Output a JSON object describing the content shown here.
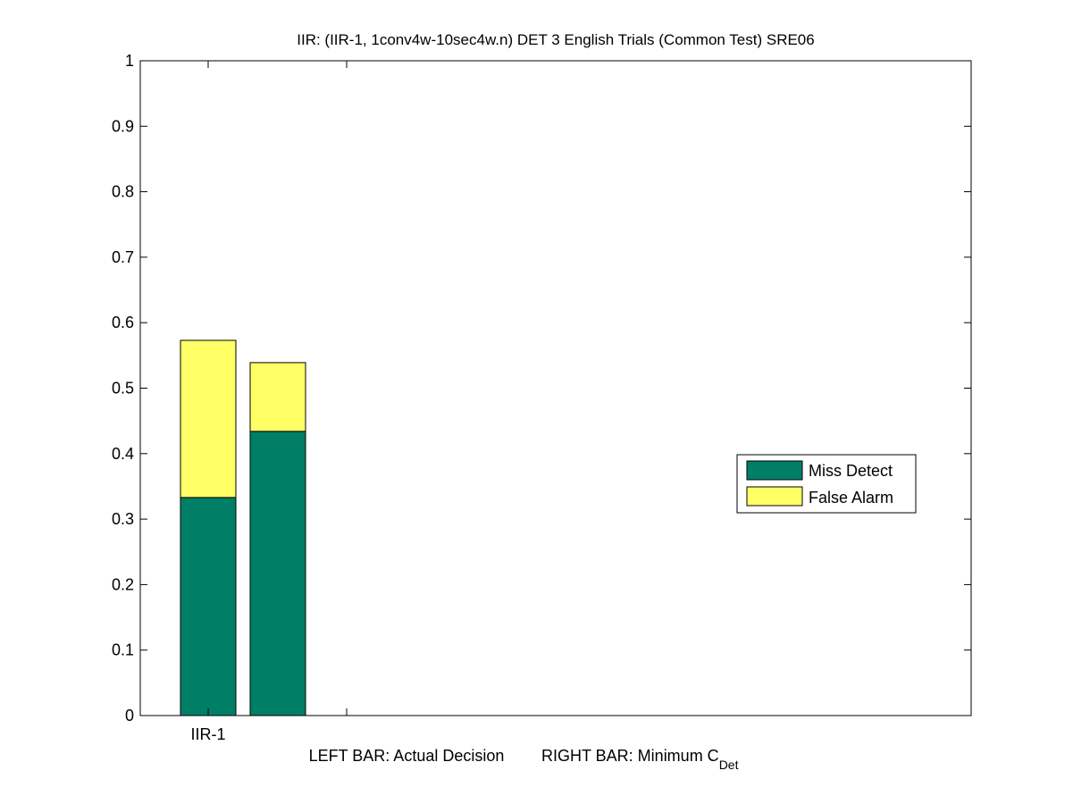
{
  "chart_data": {
    "type": "bar",
    "stacked": true,
    "title": "IIR: (IIR-1, 1conv4w-10sec4w.n) DET 3 English Trials (Common Test) SRE06",
    "categories": [
      "IIR-1"
    ],
    "bar_groups": [
      {
        "category": "IIR-1",
        "bars": [
          {
            "label": "Actual Decision",
            "miss_detect": 0.333,
            "false_alarm": 0.24,
            "total": 0.573
          },
          {
            "label": "Minimum C_Det",
            "miss_detect": 0.434,
            "false_alarm": 0.105,
            "total": 0.539
          }
        ]
      }
    ],
    "series": [
      {
        "name": "Miss Detect",
        "color": "#007F66"
      },
      {
        "name": "False Alarm",
        "color": "#FFFF66"
      }
    ],
    "ylim": [
      0,
      1
    ],
    "yticks": [
      "0",
      "0.1",
      "0.2",
      "0.3",
      "0.4",
      "0.5",
      "0.6",
      "0.7",
      "0.8",
      "0.9",
      "1"
    ],
    "xlabel_left": "LEFT BAR: Actual Decision",
    "xlabel_right_main": "RIGHT BAR: Minimum C",
    "xlabel_right_sub": "Det",
    "legend_position": "right",
    "grid": false
  }
}
